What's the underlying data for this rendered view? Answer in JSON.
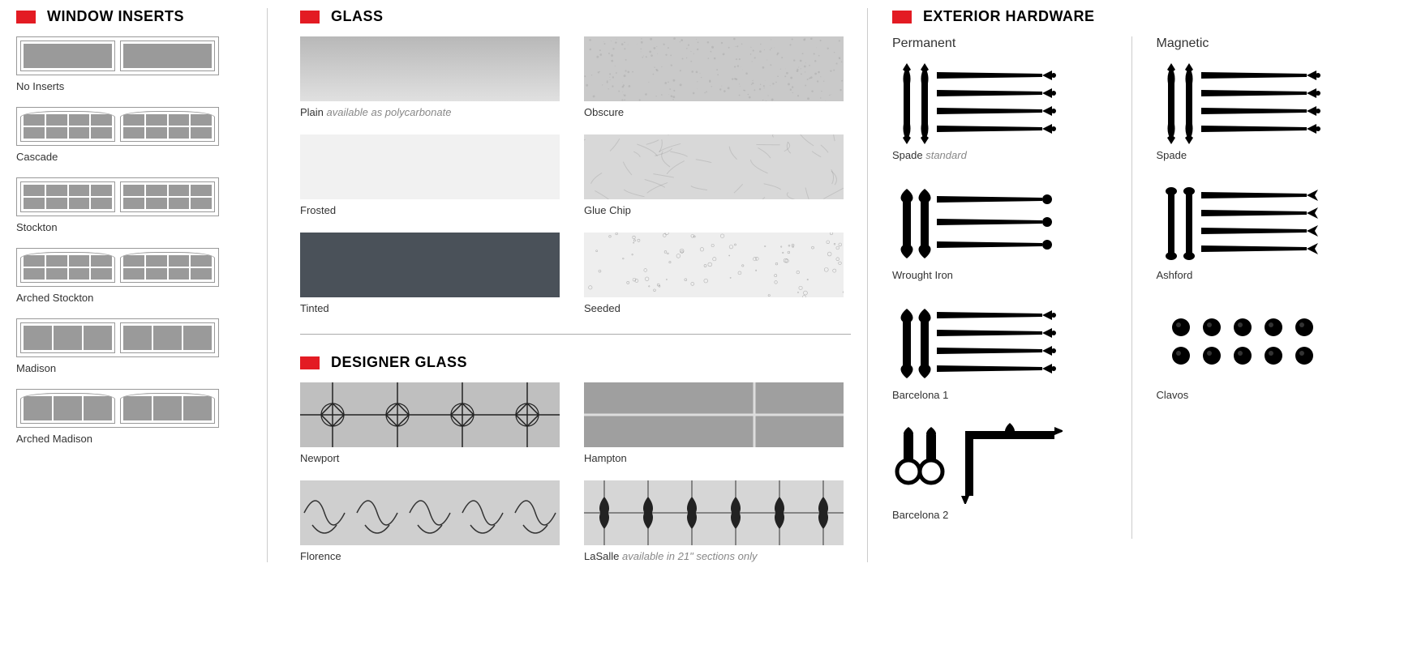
{
  "sections": {
    "window_inserts": {
      "title": "WINDOW INSERTS",
      "accent": "#e31b23",
      "items": [
        {
          "label": "No Inserts",
          "kind": "plain"
        },
        {
          "label": "Cascade",
          "kind": "arch_grid",
          "cols": 4,
          "rows": 2
        },
        {
          "label": "Stockton",
          "kind": "grid",
          "cols": 4,
          "rows": 2
        },
        {
          "label": "Arched Stockton",
          "kind": "arch_grid",
          "cols": 4,
          "rows": 2
        },
        {
          "label": "Madison",
          "kind": "grid",
          "cols": 3,
          "rows": 1
        },
        {
          "label": "Arched Madison",
          "kind": "arch_grid",
          "cols": 3,
          "rows": 1
        }
      ]
    },
    "glass": {
      "title": "GLASS",
      "accent": "#e31b23",
      "items": [
        {
          "label": "Plain",
          "note": "available as polycarbonate",
          "fill": "linear-gradient(180deg,#b8b8b8,#e0e0e0)"
        },
        {
          "label": "Obscure",
          "fill": "#c9c9c9",
          "texture": "obscure"
        },
        {
          "label": "Frosted",
          "fill": "#f1f1f1"
        },
        {
          "label": "Glue Chip",
          "fill": "#d8d8d8",
          "texture": "gluechip"
        },
        {
          "label": "Tinted",
          "fill": "#4a5159"
        },
        {
          "label": "Seeded",
          "fill": "#eeeeee",
          "texture": "seeded"
        }
      ]
    },
    "designer_glass": {
      "title": "DESIGNER GLASS",
      "accent": "#e31b23",
      "items": [
        {
          "label": "Newport",
          "bg": "#bfbfbf",
          "pattern": "newport"
        },
        {
          "label": "Hampton",
          "bg": "#9f9f9f",
          "pattern": "hampton"
        },
        {
          "label": "Florence",
          "bg": "#cfcfcf",
          "pattern": "florence"
        },
        {
          "label": "LaSalle",
          "note": "available in 21\" sections only",
          "bg": "#d6d6d6",
          "pattern": "lasalle"
        }
      ]
    },
    "exterior_hardware": {
      "title": "EXTERIOR HARDWARE",
      "accent": "#e31b23",
      "permanent": {
        "label": "Permanent",
        "items": [
          {
            "label": "Spade",
            "note": "standard",
            "type": "spade"
          },
          {
            "label": "Wrought Iron",
            "type": "wrought"
          },
          {
            "label": "Barcelona 1",
            "type": "barcelona1"
          },
          {
            "label": "Barcelona 2",
            "type": "barcelona2"
          }
        ]
      },
      "magnetic": {
        "label": "Magnetic",
        "items": [
          {
            "label": "Spade",
            "type": "spade"
          },
          {
            "label": "Ashford",
            "type": "ashford"
          },
          {
            "label": "Clavos",
            "type": "clavos"
          }
        ]
      }
    }
  },
  "colors": {
    "accent": "#e31b23",
    "text": "#333333",
    "muted": "#888888",
    "border": "#cccccc",
    "hardware": "#000000",
    "insert_fill": "#9a9a9a"
  }
}
